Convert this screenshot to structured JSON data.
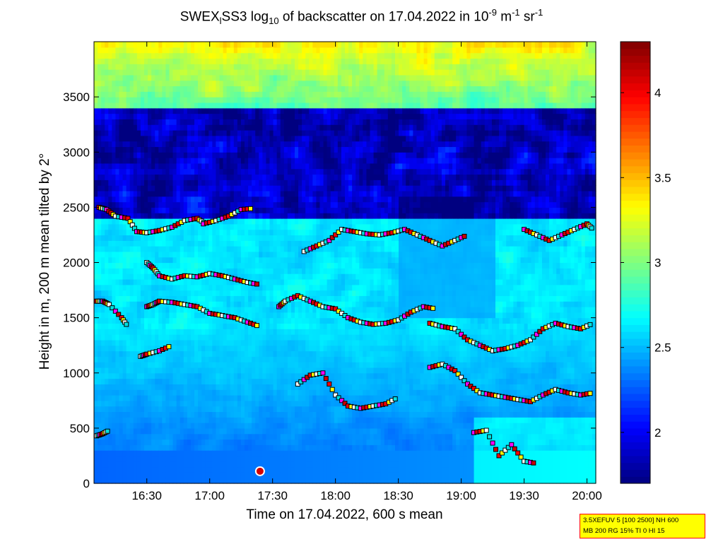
{
  "title": {
    "p1": "SWEX",
    "sub1": "l",
    "p2": "SS3 log",
    "sub2": "10",
    "p3": " of backscatter on 17.04.2022 in 10",
    "sup1": "-9",
    "p4": " m",
    "sup2": "-1",
    "p5": " sr",
    "sup3": "-1"
  },
  "xlabel": "Time on 17.04.2022, 600 s mean",
  "ylabel": "Height in m, 200 m mean tilted by 2°",
  "infobox": {
    "line1": "3.5XEFUV 5 [100 2500] NH 600",
    "line2": "MB 200 RG 15% TI 0 HI 15"
  },
  "chart_data": {
    "type": "heatmap",
    "x_unit": "time of day (hours)",
    "xlim": [
      16.08,
      20.07
    ],
    "ylim": [
      0,
      4000
    ],
    "xticks": [
      {
        "value": 16.5,
        "label": "16:30"
      },
      {
        "value": 17.0,
        "label": "17:00"
      },
      {
        "value": 17.5,
        "label": "17:30"
      },
      {
        "value": 18.0,
        "label": "18:00"
      },
      {
        "value": 18.5,
        "label": "18:30"
      },
      {
        "value": 19.0,
        "label": "19:00"
      },
      {
        "value": 19.5,
        "label": "19:30"
      },
      {
        "value": 20.0,
        "label": "20:00"
      }
    ],
    "yticks": [
      0,
      500,
      1000,
      1500,
      2000,
      2500,
      3000,
      3500
    ],
    "colorbar": {
      "limits": [
        1.7,
        4.3
      ],
      "ticks": [
        2,
        2.5,
        3,
        3.5,
        4
      ],
      "colormap": "jet"
    },
    "field_description": "log10 backscatter: ~2.2-2.5 near ground, ~2.6-2.8 in 1500-2500 m layer, low (<2) band around 2500-3300 m, ~3.0-3.4 near 3700-4000 m",
    "layer_markers": [
      {
        "x": [
          16.12,
          16.18,
          16.25,
          16.35,
          16.42,
          16.5,
          16.6,
          16.7,
          16.8,
          16.9,
          16.97
        ],
        "y": [
          2500,
          2480,
          2420,
          2400,
          2280,
          2270,
          2290,
          2320,
          2380,
          2400,
          2350
        ]
      },
      {
        "x": [
          16.95,
          17.05,
          17.15,
          17.25,
          17.35
        ],
        "y": [
          2350,
          2380,
          2420,
          2480,
          2490
        ]
      },
      {
        "x": [
          16.5,
          16.55,
          16.6,
          16.7,
          16.8,
          16.9,
          17.0,
          17.1,
          17.2,
          17.3,
          17.4
        ],
        "y": [
          2000,
          1950,
          1880,
          1850,
          1880,
          1870,
          1900,
          1880,
          1850,
          1820,
          1800
        ]
      },
      {
        "x": [
          16.1,
          16.15,
          16.2,
          16.3,
          16.35
        ],
        "y": [
          1650,
          1650,
          1620,
          1500,
          1420
        ]
      },
      {
        "x": [
          16.5,
          16.55,
          16.6,
          16.7,
          16.8,
          16.9,
          17.0,
          17.1,
          17.2,
          17.3,
          17.4
        ],
        "y": [
          1600,
          1620,
          1650,
          1640,
          1620,
          1600,
          1540,
          1520,
          1500,
          1460,
          1420
        ]
      },
      {
        "x": [
          16.45,
          16.5,
          16.6,
          16.7
        ],
        "y": [
          1150,
          1170,
          1200,
          1250
        ]
      },
      {
        "x": [
          16.1,
          16.15,
          16.2
        ],
        "y": [
          430,
          450,
          480
        ]
      },
      {
        "x": [
          17.55,
          17.6,
          17.7,
          17.8,
          17.9,
          18.0,
          18.1,
          18.2,
          18.3,
          18.4,
          18.5,
          18.6,
          18.7,
          18.8
        ],
        "y": [
          1600,
          1650,
          1700,
          1650,
          1600,
          1580,
          1500,
          1460,
          1440,
          1450,
          1480,
          1550,
          1600,
          1580
        ]
      },
      {
        "x": [
          17.75,
          17.85,
          17.95,
          18.05,
          18.15,
          18.25,
          18.35,
          18.45,
          18.55,
          18.65,
          18.75,
          18.85,
          18.95,
          19.05
        ],
        "y": [
          2100,
          2150,
          2200,
          2300,
          2280,
          2260,
          2250,
          2270,
          2300,
          2250,
          2200,
          2150,
          2200,
          2250
        ]
      },
      {
        "x": [
          18.75,
          18.85,
          18.95,
          19.05,
          19.15,
          19.25,
          19.35,
          19.45,
          19.55,
          19.65,
          19.75,
          19.85,
          19.95,
          20.05
        ],
        "y": [
          1450,
          1420,
          1400,
          1300,
          1250,
          1200,
          1220,
          1250,
          1300,
          1400,
          1450,
          1420,
          1400,
          1450
        ]
      },
      {
        "x": [
          18.75,
          18.85,
          18.95,
          19.05,
          19.15,
          19.25,
          19.35,
          19.45,
          19.55,
          19.65,
          19.75,
          19.85,
          19.95,
          20.05
        ],
        "y": [
          1050,
          1080,
          1020,
          900,
          820,
          800,
          780,
          760,
          740,
          800,
          850,
          820,
          800,
          820
        ]
      },
      {
        "x": [
          17.7,
          17.8,
          17.9,
          18.0,
          18.1,
          18.2,
          18.3,
          18.4,
          18.5
        ],
        "y": [
          900,
          980,
          1000,
          800,
          700,
          680,
          700,
          720,
          780
        ]
      },
      {
        "x": [
          19.5,
          19.6,
          19.7,
          19.8,
          19.9,
          20.0,
          20.05
        ],
        "y": [
          2300,
          2250,
          2200,
          2250,
          2300,
          2350,
          2300
        ]
      },
      {
        "x": [
          19.1,
          19.2,
          19.3,
          19.4,
          19.5,
          19.6
        ],
        "y": [
          460,
          480,
          250,
          350,
          200,
          180
        ]
      }
    ],
    "reference_marker": {
      "x": 17.4,
      "y": 110
    }
  }
}
